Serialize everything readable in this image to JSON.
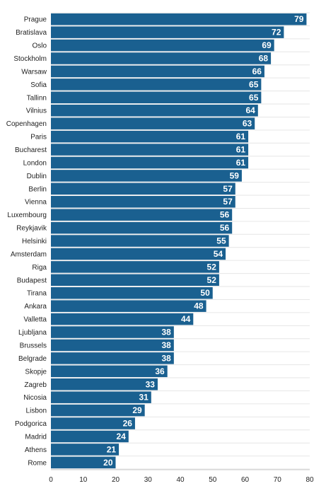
{
  "chart_data": {
    "type": "bar",
    "orientation": "horizontal",
    "categories": [
      "Prague",
      "Bratislava",
      "Oslo",
      "Stockholm",
      "Warsaw",
      "Sofia",
      "Tallinn",
      "Vilnius",
      "Copenhagen",
      "Paris",
      "Bucharest",
      "London",
      "Dublin",
      "Berlin",
      "Vienna",
      "Luxembourg",
      "Reykjavik",
      "Helsinki",
      "Amsterdam",
      "Riga",
      "Budapest",
      "Tirana",
      "Ankara",
      "Valletta",
      "Ljubljana",
      "Brussels",
      "Belgrade",
      "Skopje",
      "Zagreb",
      "Nicosia",
      "Lisbon",
      "Podgorica",
      "Madrid",
      "Athens",
      "Rome"
    ],
    "values": [
      79,
      72,
      69,
      68,
      66,
      65,
      65,
      64,
      63,
      61,
      61,
      61,
      59,
      57,
      57,
      56,
      56,
      55,
      54,
      52,
      52,
      50,
      48,
      44,
      38,
      38,
      38,
      36,
      33,
      31,
      29,
      26,
      24,
      21,
      20
    ],
    "xlim": [
      0,
      80
    ],
    "xticks": [
      0,
      10,
      20,
      30,
      40,
      50,
      60,
      70,
      80
    ],
    "bar_color": "#1a6090",
    "grid": "vertical"
  }
}
